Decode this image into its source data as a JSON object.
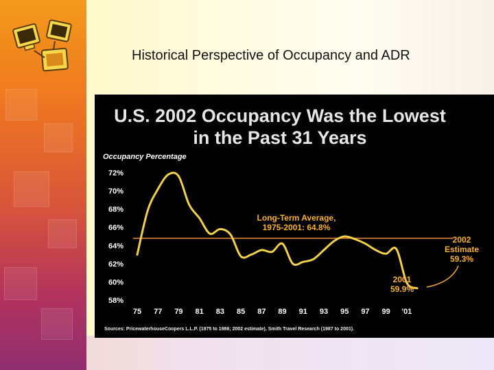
{
  "slide": {
    "title": "Historical Perspective of Occupancy and ADR"
  },
  "colors": {
    "line": "#f2d14a",
    "average_line": "#d9843a",
    "panel_bg": "#000000",
    "title_text": "#e6e6e6",
    "annotation_orange": "#f7b13a"
  },
  "chart_data": {
    "type": "line",
    "title": "U.S. 2002 Occupancy Was the Lowest in the Past 31 Years",
    "title_lines": [
      "U.S. 2002 Occupancy Was the Lowest",
      "in the Past 31 Years"
    ],
    "ylabel": "Occupancy Percentage",
    "xlabel": "",
    "ylim": [
      58,
      72
    ],
    "xlim": [
      1975,
      2002
    ],
    "y_ticks": [
      "72%",
      "70%",
      "68%",
      "66%",
      "64%",
      "62%",
      "60%",
      "58%"
    ],
    "x_ticks": [
      "75",
      "77",
      "79",
      "81",
      "83",
      "85",
      "87",
      "89",
      "91",
      "93",
      "95",
      "97",
      "99",
      "'01"
    ],
    "grid": false,
    "series": [
      {
        "name": "",
        "x": [
          1975,
          1976,
          1977,
          1978,
          1979,
          1980,
          1981,
          1982,
          1983,
          1984,
          1985,
          1986,
          1987,
          1988,
          1989,
          1990,
          1991,
          1992,
          1993,
          1994,
          1995,
          1996,
          1997,
          1998,
          1999,
          2000,
          2001,
          2002
        ],
        "y": [
          63.0,
          67.8,
          70.2,
          71.8,
          71.6,
          68.5,
          67.0,
          65.3,
          65.8,
          65.2,
          62.8,
          63.0,
          63.5,
          63.3,
          64.2,
          62.0,
          62.2,
          62.5,
          63.5,
          64.5,
          65.0,
          64.7,
          64.2,
          63.5,
          63.1,
          63.6,
          59.9,
          59.3
        ]
      }
    ],
    "average": {
      "value": 64.8
    },
    "annotations": {
      "average_line1": "Long-Term Average,",
      "average_line2": "1975-2001:  64.8%",
      "y2001_year": "2001",
      "y2001_value": "59.9%",
      "y2002_line1": "2002",
      "y2002_line2": "Estimate",
      "y2002_value": "59.3%"
    },
    "source": "Sources: PricewaterhouseCoopers L.L.P. (1975 to 1986; 2002 estimate), Smith Travel Research (1987 to 2001)."
  }
}
